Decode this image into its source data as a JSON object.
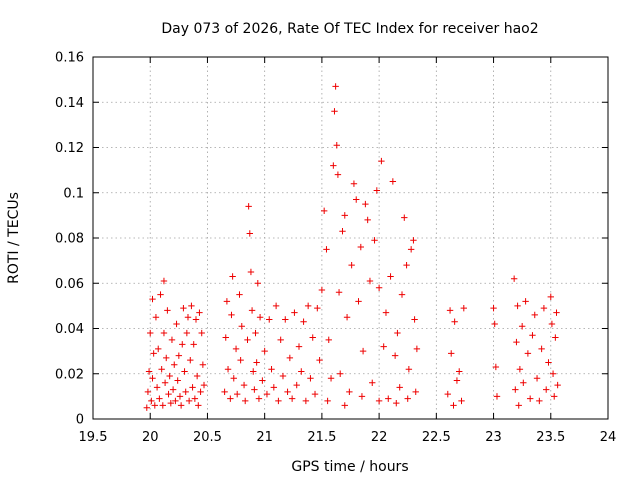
{
  "chart_data": {
    "type": "scatter",
    "title": "Day 073 of 2026, Rate Of TEC Index for receiver hao2",
    "xlabel": "GPS time / hours",
    "ylabel": "ROTI / TECUs",
    "xlim": [
      19.5,
      24
    ],
    "ylim": [
      0,
      0.16
    ],
    "xticks": [
      "19.5",
      "20",
      "20.5",
      "21",
      "21.5",
      "22",
      "22.5",
      "23",
      "23.5",
      "24"
    ],
    "yticks": [
      "0",
      "0.02",
      "0.04",
      "0.06",
      "0.08",
      "0.1",
      "0.12",
      "0.14",
      "0.16"
    ],
    "grid": true,
    "marker": "+",
    "series": [
      {
        "name": "ROTI",
        "color": "#ee0000",
        "points": [
          [
            19.97,
            0.005
          ],
          [
            19.98,
            0.012
          ],
          [
            19.99,
            0.021
          ],
          [
            20.0,
            0.038
          ],
          [
            20.01,
            0.008
          ],
          [
            20.02,
            0.018
          ],
          [
            20.02,
            0.053
          ],
          [
            20.03,
            0.029
          ],
          [
            20.04,
            0.006
          ],
          [
            20.05,
            0.045
          ],
          [
            20.06,
            0.014
          ],
          [
            20.07,
            0.031
          ],
          [
            20.08,
            0.009
          ],
          [
            20.09,
            0.055
          ],
          [
            20.1,
            0.022
          ],
          [
            20.11,
            0.006
          ],
          [
            20.12,
            0.061
          ],
          [
            20.12,
            0.038
          ],
          [
            20.13,
            0.016
          ],
          [
            20.14,
            0.027
          ],
          [
            20.15,
            0.048
          ],
          [
            20.16,
            0.011
          ],
          [
            20.17,
            0.019
          ],
          [
            20.18,
            0.007
          ],
          [
            20.19,
            0.035
          ],
          [
            20.2,
            0.013
          ],
          [
            20.21,
            0.024
          ],
          [
            20.22,
            0.008
          ],
          [
            20.23,
            0.042
          ],
          [
            20.24,
            0.017
          ],
          [
            20.25,
            0.028
          ],
          [
            20.26,
            0.01
          ],
          [
            20.27,
            0.006
          ],
          [
            20.28,
            0.033
          ],
          [
            20.29,
            0.049
          ],
          [
            20.3,
            0.021
          ],
          [
            20.31,
            0.012
          ],
          [
            20.32,
            0.038
          ],
          [
            20.33,
            0.045
          ],
          [
            20.34,
            0.008
          ],
          [
            20.35,
            0.026
          ],
          [
            20.36,
            0.05
          ],
          [
            20.37,
            0.014
          ],
          [
            20.38,
            0.033
          ],
          [
            20.39,
            0.009
          ],
          [
            20.4,
            0.044
          ],
          [
            20.41,
            0.019
          ],
          [
            20.42,
            0.006
          ],
          [
            20.43,
            0.047
          ],
          [
            20.44,
            0.012
          ],
          [
            20.45,
            0.038
          ],
          [
            20.46,
            0.024
          ],
          [
            20.47,
            0.015
          ],
          [
            20.65,
            0.012
          ],
          [
            20.66,
            0.036
          ],
          [
            20.67,
            0.052
          ],
          [
            20.68,
            0.022
          ],
          [
            20.7,
            0.009
          ],
          [
            20.71,
            0.046
          ],
          [
            20.72,
            0.063
          ],
          [
            20.73,
            0.018
          ],
          [
            20.75,
            0.031
          ],
          [
            20.76,
            0.011
          ],
          [
            20.78,
            0.055
          ],
          [
            20.79,
            0.026
          ],
          [
            20.8,
            0.041
          ],
          [
            20.82,
            0.015
          ],
          [
            20.83,
            0.008
          ],
          [
            20.85,
            0.035
          ],
          [
            20.86,
            0.094
          ],
          [
            20.87,
            0.082
          ],
          [
            20.88,
            0.065
          ],
          [
            20.89,
            0.048
          ],
          [
            20.9,
            0.021
          ],
          [
            20.91,
            0.013
          ],
          [
            20.92,
            0.038
          ],
          [
            20.93,
            0.025
          ],
          [
            20.94,
            0.06
          ],
          [
            20.95,
            0.009
          ],
          [
            20.96,
            0.045
          ],
          [
            20.98,
            0.017
          ],
          [
            21.0,
            0.03
          ],
          [
            21.02,
            0.011
          ],
          [
            21.04,
            0.044
          ],
          [
            21.06,
            0.022
          ],
          [
            21.08,
            0.014
          ],
          [
            21.1,
            0.05
          ],
          [
            21.12,
            0.008
          ],
          [
            21.14,
            0.035
          ],
          [
            21.16,
            0.019
          ],
          [
            21.18,
            0.044
          ],
          [
            21.2,
            0.012
          ],
          [
            21.22,
            0.027
          ],
          [
            21.24,
            0.009
          ],
          [
            21.26,
            0.047
          ],
          [
            21.28,
            0.015
          ],
          [
            21.3,
            0.032
          ],
          [
            21.32,
            0.021
          ],
          [
            21.34,
            0.043
          ],
          [
            21.36,
            0.008
          ],
          [
            21.38,
            0.05
          ],
          [
            21.4,
            0.018
          ],
          [
            21.42,
            0.036
          ],
          [
            21.44,
            0.011
          ],
          [
            21.46,
            0.049
          ],
          [
            21.48,
            0.026
          ],
          [
            21.5,
            0.057
          ],
          [
            21.52,
            0.092
          ],
          [
            21.54,
            0.075
          ],
          [
            21.56,
            0.035
          ],
          [
            21.58,
            0.018
          ],
          [
            21.6,
            0.112
          ],
          [
            21.61,
            0.136
          ],
          [
            21.62,
            0.147
          ],
          [
            21.63,
            0.121
          ],
          [
            21.64,
            0.108
          ],
          [
            21.65,
            0.056
          ],
          [
            21.66,
            0.02
          ],
          [
            21.68,
            0.083
          ],
          [
            21.7,
            0.09
          ],
          [
            21.72,
            0.045
          ],
          [
            21.74,
            0.012
          ],
          [
            21.76,
            0.068
          ],
          [
            21.78,
            0.104
          ],
          [
            21.8,
            0.097
          ],
          [
            21.82,
            0.052
          ],
          [
            21.84,
            0.076
          ],
          [
            21.86,
            0.03
          ],
          [
            21.88,
            0.095
          ],
          [
            21.9,
            0.088
          ],
          [
            21.92,
            0.061
          ],
          [
            21.94,
            0.016
          ],
          [
            21.96,
            0.079
          ],
          [
            21.98,
            0.101
          ],
          [
            22.0,
            0.058
          ],
          [
            22.02,
            0.114
          ],
          [
            22.04,
            0.032
          ],
          [
            22.06,
            0.047
          ],
          [
            22.08,
            0.009
          ],
          [
            22.1,
            0.063
          ],
          [
            22.12,
            0.105
          ],
          [
            22.14,
            0.028
          ],
          [
            22.16,
            0.038
          ],
          [
            22.18,
            0.014
          ],
          [
            22.2,
            0.055
          ],
          [
            22.22,
            0.089
          ],
          [
            22.24,
            0.068
          ],
          [
            22.26,
            0.022
          ],
          [
            22.28,
            0.075
          ],
          [
            22.3,
            0.079
          ],
          [
            22.31,
            0.044
          ],
          [
            22.32,
            0.012
          ],
          [
            22.33,
            0.031
          ],
          [
            21.55,
            0.008
          ],
          [
            21.7,
            0.006
          ],
          [
            21.85,
            0.01
          ],
          [
            22.0,
            0.008
          ],
          [
            22.15,
            0.007
          ],
          [
            22.25,
            0.009
          ],
          [
            22.6,
            0.011
          ],
          [
            22.62,
            0.048
          ],
          [
            22.63,
            0.029
          ],
          [
            22.65,
            0.006
          ],
          [
            22.66,
            0.043
          ],
          [
            22.68,
            0.017
          ],
          [
            22.7,
            0.021
          ],
          [
            22.72,
            0.008
          ],
          [
            22.74,
            0.049
          ],
          [
            23.0,
            0.049
          ],
          [
            23.01,
            0.042
          ],
          [
            23.02,
            0.023
          ],
          [
            23.03,
            0.01
          ],
          [
            23.18,
            0.062
          ],
          [
            23.19,
            0.013
          ],
          [
            23.2,
            0.034
          ],
          [
            23.21,
            0.05
          ],
          [
            23.22,
            0.006
          ],
          [
            23.23,
            0.022
          ],
          [
            23.25,
            0.041
          ],
          [
            23.26,
            0.016
          ],
          [
            23.28,
            0.052
          ],
          [
            23.3,
            0.029
          ],
          [
            23.32,
            0.009
          ],
          [
            23.34,
            0.037
          ],
          [
            23.36,
            0.046
          ],
          [
            23.38,
            0.018
          ],
          [
            23.4,
            0.008
          ],
          [
            23.42,
            0.031
          ],
          [
            23.44,
            0.049
          ],
          [
            23.46,
            0.013
          ],
          [
            23.48,
            0.025
          ],
          [
            23.5,
            0.054
          ],
          [
            23.51,
            0.042
          ],
          [
            23.52,
            0.02
          ],
          [
            23.53,
            0.01
          ],
          [
            23.54,
            0.036
          ],
          [
            23.55,
            0.047
          ],
          [
            23.56,
            0.015
          ]
        ]
      }
    ]
  }
}
